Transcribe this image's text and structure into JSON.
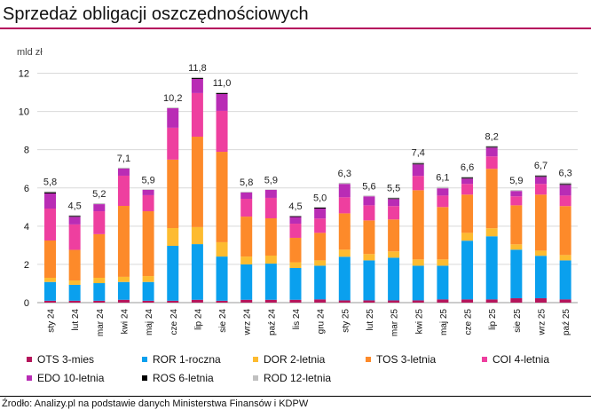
{
  "header": {
    "title": "Sprzedaż obligacji oszczędnościowych"
  },
  "footer": {
    "source": "Źrodło: Analizy.pl na podstawie danych Ministerstwa Finansów i KDPW"
  },
  "chart_data": {
    "type": "bar",
    "stacked": true,
    "title": "Sprzedaż obligacji oszczędnościowych",
    "ylabel": "mld zł",
    "xlabel": "",
    "ylim": [
      0,
      12
    ],
    "yticks": [
      0,
      2,
      4,
      6,
      8,
      10,
      12
    ],
    "grid": true,
    "legend_position": "bottom",
    "categories": [
      "sty 24",
      "lut 24",
      "mar 24",
      "kwi 24",
      "maj 24",
      "cze 24",
      "lip 24",
      "sie 24",
      "wrz 24",
      "paź 24",
      "lis 24",
      "gru 24",
      "sty 25",
      "lut 25",
      "mar 25",
      "kwi 25",
      "maj 25",
      "cze 25",
      "lip 25",
      "sie 25",
      "wrz 25",
      "paź 25"
    ],
    "totals_labels": [
      "5,8",
      "4,5",
      "5,2",
      "7,1",
      "5,9",
      "10,2",
      "11,8",
      "11,0",
      "5,8",
      "5,9",
      "4,5",
      "5,0",
      "6,3",
      "5,6",
      "5,5",
      "7,4",
      "6,1",
      "6,6",
      "8,2",
      "5,9",
      "6,7",
      "6,3"
    ],
    "series": [
      {
        "name": "OTS 3-mies",
        "color": "#b5155b",
        "values": [
          0.1,
          0.1,
          0.1,
          0.15,
          0.1,
          0.1,
          0.15,
          0.1,
          0.15,
          0.15,
          0.15,
          0.17,
          0.12,
          0.12,
          0.12,
          0.12,
          0.17,
          0.17,
          0.17,
          0.23,
          0.23,
          0.17
        ]
      },
      {
        "name": "ROR 1-roczna",
        "color": "#0aa0ee",
        "values": [
          0.98,
          0.83,
          0.92,
          0.93,
          0.98,
          2.87,
          2.91,
          2.31,
          1.85,
          1.89,
          1.66,
          1.76,
          2.28,
          2.09,
          2.23,
          1.81,
          1.76,
          3.07,
          3.3,
          2.54,
          2.22,
          2.04
        ]
      },
      {
        "name": "DOR 2-letnia",
        "color": "#fdbb30",
        "values": [
          0.22,
          0.23,
          0.28,
          0.27,
          0.31,
          0.93,
          0.89,
          0.75,
          0.41,
          0.42,
          0.3,
          0.28,
          0.37,
          0.33,
          0.33,
          0.33,
          0.33,
          0.41,
          0.42,
          0.28,
          0.27,
          0.28
        ]
      },
      {
        "name": "TOS 3-letnia",
        "color": "#fd8a2a",
        "values": [
          1.95,
          1.6,
          2.28,
          3.71,
          3.39,
          3.58,
          4.73,
          4.73,
          2.09,
          1.95,
          1.28,
          1.44,
          1.9,
          1.76,
          1.67,
          3.62,
          2.74,
          2.0,
          3.11,
          2.04,
          2.93,
          2.56
        ]
      },
      {
        "name": "COI 4-letnia",
        "color": "#ee3f9f",
        "values": [
          1.67,
          1.33,
          1.2,
          1.58,
          0.84,
          1.67,
          2.28,
          2.14,
          0.93,
          1.07,
          0.74,
          0.75,
          0.84,
          0.79,
          0.7,
          0.75,
          0.6,
          0.56,
          0.65,
          0.47,
          0.56,
          0.55
        ]
      },
      {
        "name": "EDO 10-letnia",
        "color": "#b92cb5",
        "values": [
          0.79,
          0.4,
          0.37,
          0.37,
          0.28,
          1.02,
          0.74,
          0.88,
          0.33,
          0.42,
          0.35,
          0.52,
          0.7,
          0.47,
          0.37,
          0.6,
          0.38,
          0.28,
          0.46,
          0.28,
          0.37,
          0.56
        ]
      },
      {
        "name": "ROS 6-letnia",
        "color": "#000000",
        "values": [
          0.06,
          0.05,
          0.0,
          0.0,
          0.0,
          0.0,
          0.05,
          0.05,
          0.0,
          0.0,
          0.04,
          0.05,
          0.0,
          0.0,
          0.04,
          0.05,
          0.0,
          0.05,
          0.05,
          0.0,
          0.05,
          0.05
        ]
      },
      {
        "name": "ROD 12-letnia",
        "color": "#c0c0c0",
        "values": [
          0.05,
          0.03,
          0.05,
          0.05,
          0.03,
          0.04,
          0.05,
          0.04,
          0.04,
          0.02,
          0.03,
          0.03,
          0.06,
          0.04,
          0.04,
          0.07,
          0.07,
          0.05,
          0.04,
          0.05,
          0.05,
          0.07
        ]
      }
    ]
  }
}
